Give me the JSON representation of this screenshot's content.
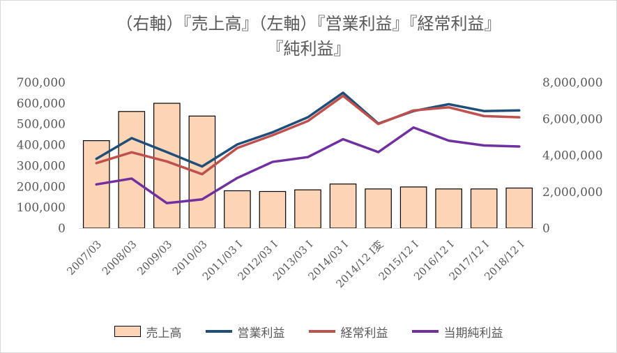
{
  "chart_data": {
    "type": "bar",
    "title_line1": "（右軸）『売上高』（左軸）『営業利益』『経常利益』",
    "title_line2": "『純利益』",
    "categories": [
      "2007/03",
      "2008/03",
      "2009/03",
      "2010/03",
      "2011/03 I",
      "2012/03 I",
      "2013/03 I",
      "2014/03 I",
      "2014/12 I変",
      "2015/12 I",
      "2016/12 I",
      "2017/12 I",
      "2018/12 I"
    ],
    "left_axis": {
      "min": 0,
      "max": 700000,
      "ticks": [
        "0",
        "100,000",
        "200,000",
        "300,000",
        "400,000",
        "500,000",
        "600,000",
        "700,000"
      ]
    },
    "right_axis": {
      "min": 0,
      "max": 8000000,
      "ticks": [
        "0",
        "2,000,000",
        "4,000,000",
        "6,000,000",
        "8,000,000"
      ]
    },
    "series": [
      {
        "name": "売上高",
        "kind": "bar",
        "axis": "right",
        "color": "#fbd5b5",
        "values": [
          4800000,
          6400000,
          6850000,
          6150000,
          2050000,
          2010000,
          2100000,
          2420000,
          2150000,
          2260000,
          2150000,
          2150000,
          2200000
        ]
      },
      {
        "name": "営業利益",
        "kind": "line",
        "axis": "left",
        "color": "#1f4e79",
        "values": [
          333000,
          432000,
          365000,
          296000,
          402000,
          460000,
          532000,
          650000,
          502000,
          562000,
          595000,
          562000,
          565000
        ]
      },
      {
        "name": "経常利益",
        "kind": "line",
        "axis": "left",
        "color": "#c0504d",
        "values": [
          312000,
          364000,
          320000,
          259000,
          385000,
          446000,
          514000,
          635000,
          500000,
          565000,
          580000,
          538000,
          532000
        ]
      },
      {
        "name": "当期純利益",
        "kind": "line",
        "axis": "left",
        "color": "#7030a0",
        "values": [
          210000,
          238000,
          120000,
          138000,
          241000,
          318000,
          341000,
          427000,
          365000,
          483000,
          420000,
          397000,
          392000
        ]
      }
    ],
    "grid": false,
    "legend_position": "bottom"
  }
}
